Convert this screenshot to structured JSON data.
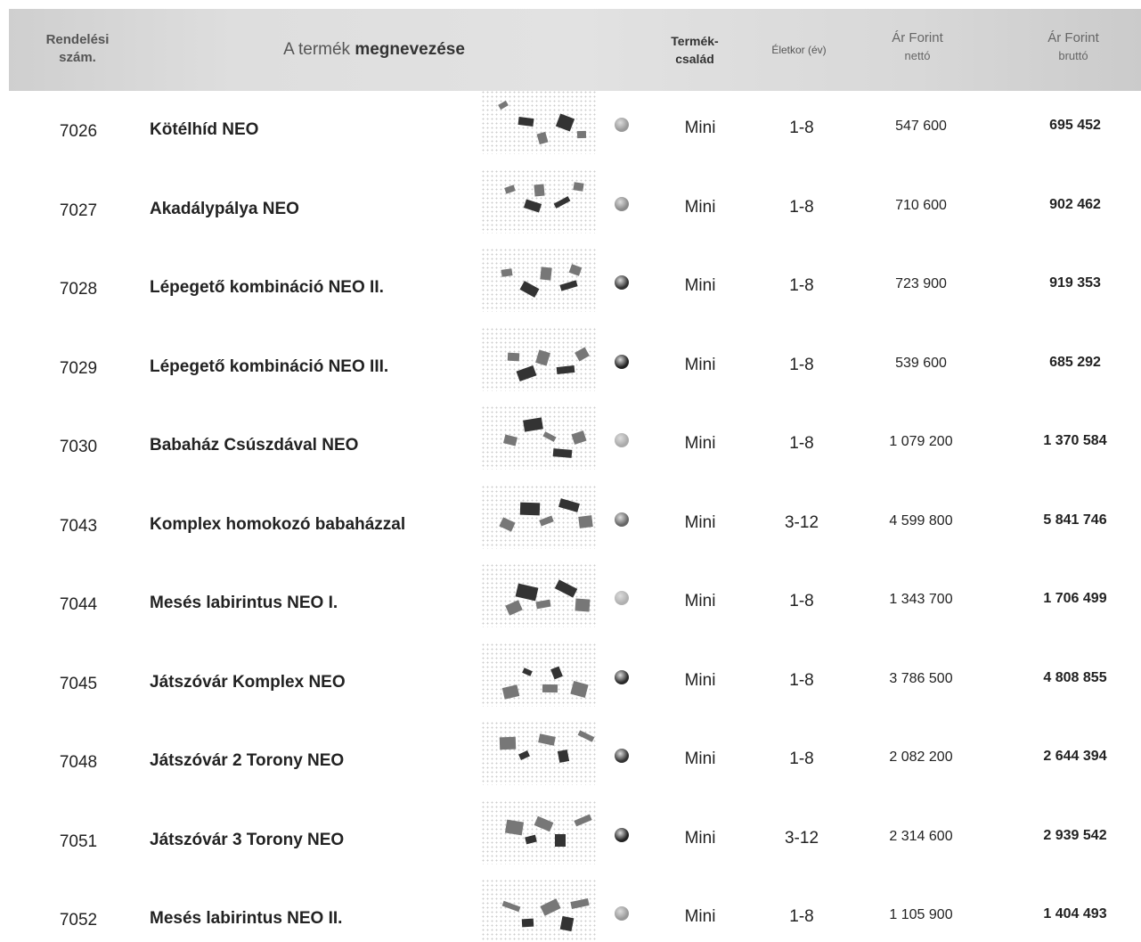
{
  "header": {
    "order_no": [
      "Rendelési",
      "szám."
    ],
    "name": [
      "A termék",
      "megnevezése"
    ],
    "family": [
      "Termék-",
      "család"
    ],
    "age": "Életkor (év)",
    "net": [
      "Ár Forint",
      "nettó"
    ],
    "gross": [
      "Ár Forint",
      "bruttó"
    ]
  },
  "table": {
    "rows": [
      [
        "7026",
        "Kötélhíd NEO",
        "Mini",
        "1-8",
        "547 600",
        "695 452"
      ],
      [
        "7027",
        "Akadálypálya NEO",
        "Mini",
        "1-8",
        "710 600",
        "902 462"
      ],
      [
        "7028",
        "Lépegető kombináció NEO II.",
        "Mini",
        "1-8",
        "723 900",
        "919 353"
      ],
      [
        "7029",
        "Lépegető kombináció NEO III.",
        "Mini",
        "1-8",
        "539 600",
        "685 292"
      ],
      [
        "7030",
        "Babaház Csúszdával NEO",
        "Mini",
        "1-8",
        "1 079 200",
        "1 370 584"
      ],
      [
        "7043",
        "Komplex homokozó babaházzal",
        "Mini",
        "3-12",
        "4 599 800",
        "5 841 746"
      ],
      [
        "7044",
        "Mesés labirintus NEO I.",
        "Mini",
        "1-8",
        "1 343 700",
        "1 706 499"
      ],
      [
        "7045",
        "Játszóvár Komplex NEO",
        "Mini",
        "1-8",
        "3 786 500",
        "4 808 855"
      ],
      [
        "7048",
        "Játszóvár 2 Torony NEO",
        "Mini",
        "1-8",
        "2 082 200",
        "2 644 394"
      ],
      [
        "7051",
        "Játszóvár 3 Torony NEO",
        "Mini",
        "3-12",
        "2 314 600",
        "2 939 542"
      ],
      [
        "7052",
        "Mesés labirintus NEO II.",
        "Mini",
        "1-8",
        "1 105 900",
        "1 404 493"
      ]
    ]
  }
}
